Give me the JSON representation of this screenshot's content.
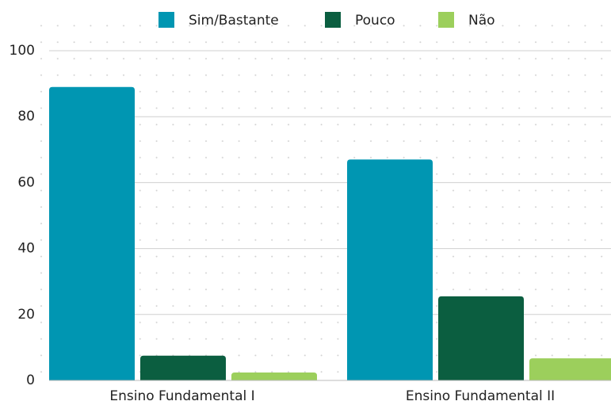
{
  "chart_data": {
    "type": "bar",
    "categories": [
      "Ensino Fundamental I",
      "Ensino Fundamental II"
    ],
    "series": [
      {
        "name": "Sim/Bastante",
        "color": "#0096b2",
        "values": [
          89,
          67
        ]
      },
      {
        "name": "Pouco",
        "color": "#0b5e40",
        "values": [
          7.5,
          25.5
        ]
      },
      {
        "name": "Não",
        "color": "#9ccf5c",
        "values": [
          2.4,
          6.7
        ]
      }
    ],
    "ylim": [
      0,
      100
    ],
    "yticks": [
      0,
      20,
      40,
      60,
      80,
      100
    ],
    "grid": true,
    "legend": "top"
  }
}
